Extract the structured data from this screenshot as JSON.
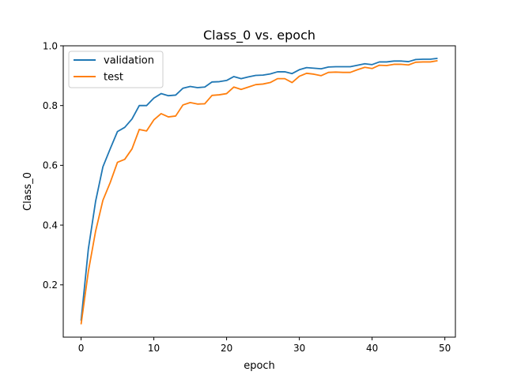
{
  "chart_data": {
    "type": "line",
    "title": "Class_0 vs. epoch",
    "xlabel": "epoch",
    "ylabel": "Class_0",
    "xlim": [
      -2.45,
      51.45
    ],
    "ylim": [
      0.025,
      1.0
    ],
    "xticks": [
      0,
      10,
      20,
      30,
      40,
      50
    ],
    "yticks": [
      0.2,
      0.4,
      0.6,
      0.8,
      1.0
    ],
    "xtick_labels": [
      "0",
      "10",
      "20",
      "30",
      "40",
      "50"
    ],
    "ytick_labels": [
      "0.2",
      "0.4",
      "0.6",
      "0.8",
      "1.0"
    ],
    "grid": false,
    "legend_position": "top-left",
    "x": [
      0,
      1,
      2,
      3,
      4,
      5,
      6,
      7,
      8,
      9,
      10,
      11,
      12,
      13,
      14,
      15,
      16,
      17,
      18,
      19,
      20,
      21,
      22,
      23,
      24,
      25,
      26,
      27,
      28,
      29,
      30,
      31,
      32,
      33,
      34,
      35,
      36,
      37,
      38,
      39,
      40,
      41,
      42,
      43,
      44,
      45,
      46,
      47,
      48,
      49
    ],
    "series": [
      {
        "name": "validation",
        "color": "#1f77b4",
        "values": [
          0.08,
          0.32,
          0.48,
          0.595,
          0.655,
          0.713,
          0.727,
          0.755,
          0.8,
          0.8,
          0.825,
          0.84,
          0.833,
          0.835,
          0.858,
          0.864,
          0.86,
          0.862,
          0.879,
          0.88,
          0.884,
          0.897,
          0.89,
          0.896,
          0.901,
          0.902,
          0.906,
          0.913,
          0.913,
          0.907,
          0.92,
          0.927,
          0.925,
          0.923,
          0.929,
          0.93,
          0.93,
          0.93,
          0.935,
          0.94,
          0.937,
          0.946,
          0.946,
          0.949,
          0.949,
          0.947,
          0.954,
          0.955,
          0.955,
          0.958
        ]
      },
      {
        "name": "test",
        "color": "#ff7f0e",
        "values": [
          0.068,
          0.245,
          0.38,
          0.483,
          0.542,
          0.61,
          0.62,
          0.655,
          0.72,
          0.715,
          0.752,
          0.773,
          0.762,
          0.765,
          0.802,
          0.81,
          0.805,
          0.806,
          0.834,
          0.836,
          0.84,
          0.862,
          0.854,
          0.862,
          0.87,
          0.872,
          0.877,
          0.89,
          0.89,
          0.877,
          0.898,
          0.908,
          0.905,
          0.9,
          0.911,
          0.912,
          0.911,
          0.911,
          0.92,
          0.928,
          0.924,
          0.935,
          0.934,
          0.938,
          0.938,
          0.936,
          0.945,
          0.946,
          0.946,
          0.95
        ]
      }
    ]
  }
}
